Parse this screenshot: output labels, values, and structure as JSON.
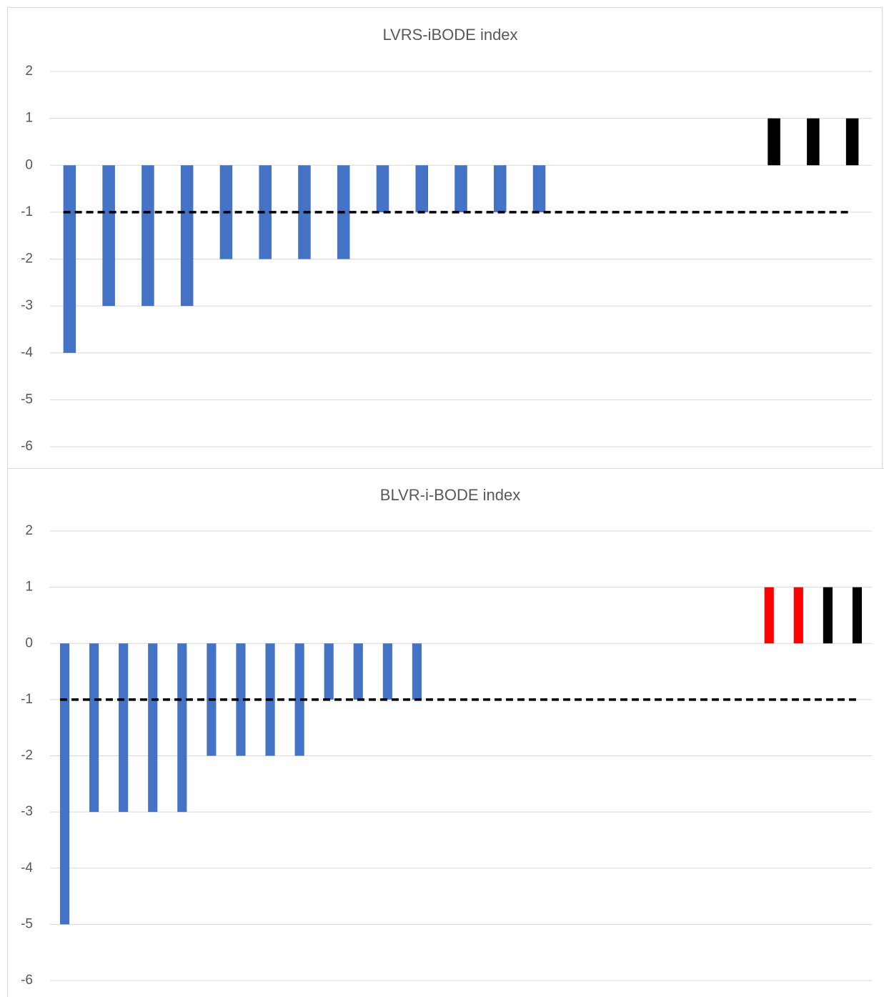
{
  "chart_data": [
    {
      "type": "bar",
      "title": "LVRS-iBODE index",
      "categories": [
        null,
        null,
        null,
        null,
        null,
        null,
        null,
        null,
        null,
        null,
        null,
        null,
        null,
        null,
        null,
        null,
        null,
        null,
        null,
        null,
        null
      ],
      "values": [
        -4,
        -3,
        -3,
        -3,
        -2,
        -2,
        -2,
        -2,
        -1,
        -1,
        -1,
        -1,
        -1,
        null,
        null,
        null,
        null,
        null,
        1,
        1,
        1
      ],
      "colors": [
        "#4472c4",
        "#4472c4",
        "#4472c4",
        "#4472c4",
        "#4472c4",
        "#4472c4",
        "#4472c4",
        "#4472c4",
        "#4472c4",
        "#4472c4",
        "#4472c4",
        "#4472c4",
        "#4472c4",
        null,
        null,
        null,
        null,
        null,
        "#000000",
        "#000000",
        "#000000"
      ],
      "ylim": [
        -6,
        2
      ],
      "yticks": [
        -6,
        -5,
        -4,
        -3,
        -2,
        -1,
        0,
        1,
        2
      ],
      "grid": true,
      "reference_line": -1
    },
    {
      "type": "bar",
      "title": "BLVR-i-BODE index",
      "categories": [
        null,
        null,
        null,
        null,
        null,
        null,
        null,
        null,
        null,
        null,
        null,
        null,
        null,
        null,
        null,
        null,
        null,
        null,
        null,
        null,
        null,
        null,
        null,
        null,
        null,
        null,
        null,
        null
      ],
      "values": [
        -5,
        -3,
        -3,
        -3,
        -3,
        -2,
        -2,
        -2,
        -2,
        -1,
        -1,
        -1,
        -1,
        null,
        null,
        null,
        null,
        null,
        null,
        null,
        null,
        null,
        null,
        null,
        1,
        1,
        1,
        1
      ],
      "colors": [
        "#4472c4",
        "#4472c4",
        "#4472c4",
        "#4472c4",
        "#4472c4",
        "#4472c4",
        "#4472c4",
        "#4472c4",
        "#4472c4",
        "#4472c4",
        "#4472c4",
        "#4472c4",
        "#4472c4",
        null,
        null,
        null,
        null,
        null,
        null,
        null,
        null,
        null,
        null,
        null,
        "#ff0000",
        "#ff0000",
        "#000000",
        "#000000"
      ],
      "ylim": [
        -6,
        2
      ],
      "yticks": [
        -6,
        -5,
        -4,
        -3,
        -2,
        -1,
        0,
        1,
        2
      ],
      "grid": true,
      "reference_line": -1
    }
  ]
}
